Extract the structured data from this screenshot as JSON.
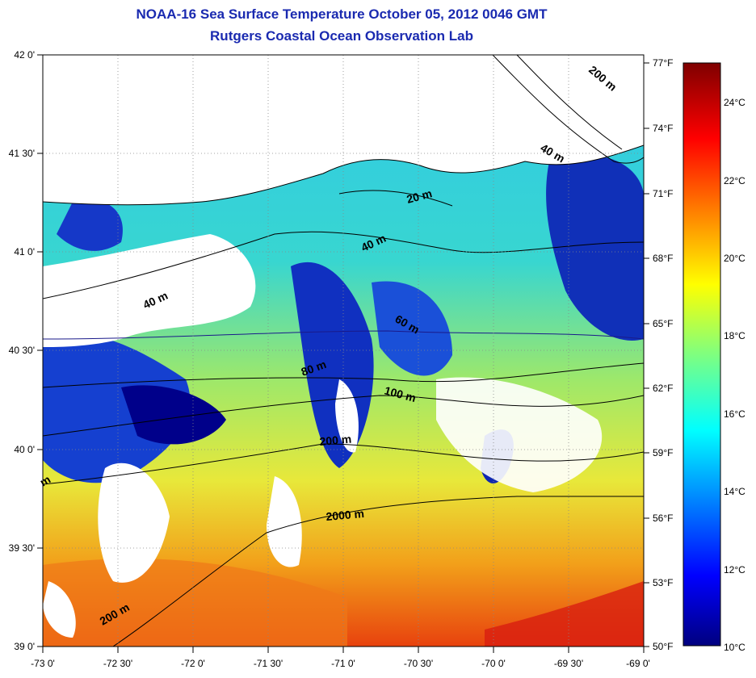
{
  "header": {
    "title": "NOAA-16 Sea Surface Temperature October 05, 2012 0046 GMT",
    "subtitle": "Rutgers Coastal Ocean Observation Lab"
  },
  "map": {
    "lon_ticks": [
      "-73 0'",
      "-72 30'",
      "-72 0'",
      "-71 30'",
      "-71 0'",
      "-70 30'",
      "-70 0'",
      "-69 30'",
      "-69 0'"
    ],
    "lat_ticks": [
      "42 0'",
      "41 30'",
      "41 0'",
      "40 30'",
      "40 0'",
      "39 30'",
      "39 0'"
    ],
    "fahrenheit_ticks": [
      "77°F",
      "74°F",
      "71°F",
      "68°F",
      "65°F",
      "62°F",
      "59°F",
      "56°F",
      "53°F",
      "50°F"
    ],
    "contour_labels": [
      "200 m",
      "40 m",
      "20 m",
      "40 m",
      "40 m",
      "60 m",
      "80 m",
      "100 m",
      "200 m",
      "2000 m",
      "200 m",
      "m"
    ]
  },
  "colorbar": {
    "celsius_ticks": [
      "24°C",
      "22°C",
      "20°C",
      "18°C",
      "16°C",
      "14°C",
      "12°C",
      "10°C"
    ]
  }
}
